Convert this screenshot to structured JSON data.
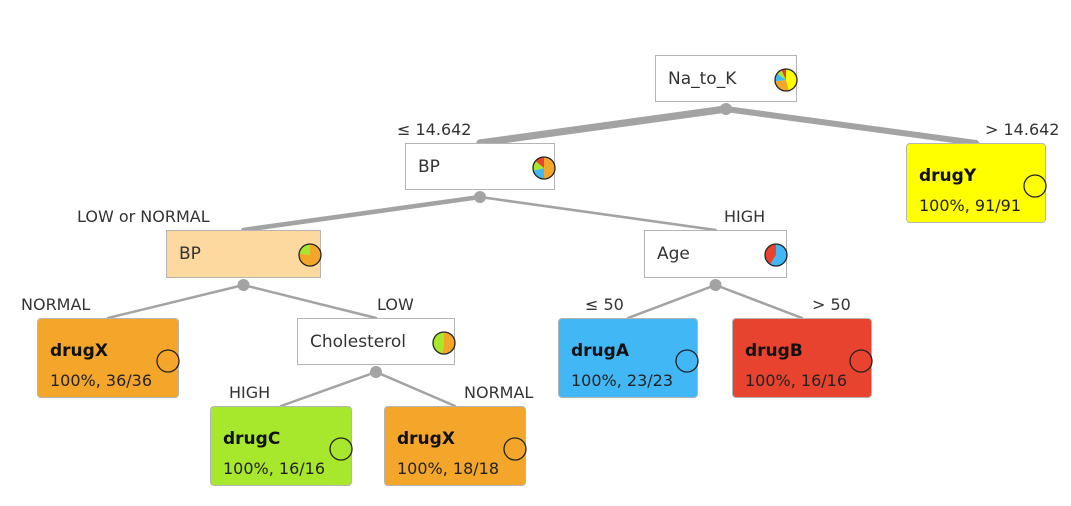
{
  "nodes": [
    {
      "id": "root",
      "kind": "split",
      "label": "Na_to_K",
      "bg": "#ffffff",
      "pie": [
        {
          "color": "#ffff00",
          "w": 0.46
        },
        {
          "color": "#f4a62a",
          "w": 0.27
        },
        {
          "color": "#41b8f5",
          "w": 0.12
        },
        {
          "color": "#a8e82c",
          "w": 0.08
        },
        {
          "color": "#e8432f",
          "w": 0.07
        }
      ]
    },
    {
      "id": "bp1",
      "kind": "split",
      "label": "BP",
      "bg": "#ffffff",
      "pie": [
        {
          "color": "#f4a62a",
          "w": 0.5
        },
        {
          "color": "#41b8f5",
          "w": 0.21
        },
        {
          "color": "#a8e82c",
          "w": 0.15
        },
        {
          "color": "#e8432f",
          "w": 0.14
        }
      ]
    },
    {
      "id": "drugY",
      "kind": "leaf",
      "label": "drugY",
      "stats": "100%, 91/91",
      "bg": "#ffff00",
      "circle": "#ffff00"
    },
    {
      "id": "bp2",
      "kind": "split",
      "label": "BP",
      "bg": "#fdd9a0",
      "pie": [
        {
          "color": "#f4a62a",
          "w": 0.77
        },
        {
          "color": "#a8e82c",
          "w": 0.23
        }
      ]
    },
    {
      "id": "age",
      "kind": "split",
      "label": "Age",
      "bg": "#ffffff",
      "pie": [
        {
          "color": "#41b8f5",
          "w": 0.59
        },
        {
          "color": "#e8432f",
          "w": 0.41
        }
      ]
    },
    {
      "id": "drugX1",
      "kind": "leaf",
      "label": "drugX",
      "stats": "100%, 36/36",
      "bg": "#f4a62a",
      "circle": "#f4a62a"
    },
    {
      "id": "chol",
      "kind": "split",
      "label": "Cholesterol",
      "bg": "#ffffff",
      "pie": [
        {
          "color": "#f4a62a",
          "w": 0.53
        },
        {
          "color": "#a8e82c",
          "w": 0.47
        }
      ]
    },
    {
      "id": "drugA",
      "kind": "leaf",
      "label": "drugA",
      "stats": "100%, 23/23",
      "bg": "#41b8f5",
      "circle": "#41b8f5"
    },
    {
      "id": "drugB",
      "kind": "leaf",
      "label": "drugB",
      "stats": "100%, 16/16",
      "bg": "#e8432f",
      "circle": "#e8432f"
    },
    {
      "id": "drugC",
      "kind": "leaf",
      "label": "drugC",
      "stats": "100%, 16/16",
      "bg": "#a8e82c",
      "circle": "#a8e82c"
    },
    {
      "id": "drugX2",
      "kind": "leaf",
      "label": "drugX",
      "stats": "100%, 18/18",
      "bg": "#f4a62a",
      "circle": "#f4a62a"
    }
  ],
  "edges": [
    {
      "from": "root",
      "to": "bp1",
      "label": "≤ 14.642",
      "weight": 109
    },
    {
      "from": "root",
      "to": "drugY",
      "label": "> 14.642",
      "weight": 91
    },
    {
      "from": "bp1",
      "to": "bp2",
      "label": "LOW or NORMAL",
      "weight": 70
    },
    {
      "from": "bp1",
      "to": "age",
      "label": "HIGH",
      "weight": 39
    },
    {
      "from": "bp2",
      "to": "drugX1",
      "label": "NORMAL",
      "weight": 36
    },
    {
      "from": "bp2",
      "to": "chol",
      "label": "LOW",
      "weight": 34
    },
    {
      "from": "age",
      "to": "drugA",
      "label": "≤ 50",
      "weight": 23
    },
    {
      "from": "age",
      "to": "drugB",
      "label": "> 50",
      "weight": 16
    },
    {
      "from": "chol",
      "to": "drugC",
      "label": "HIGH",
      "weight": 16
    },
    {
      "from": "chol",
      "to": "drugX2",
      "label": "NORMAL",
      "weight": 18
    }
  ],
  "edge_color": "#a3a3a3"
}
